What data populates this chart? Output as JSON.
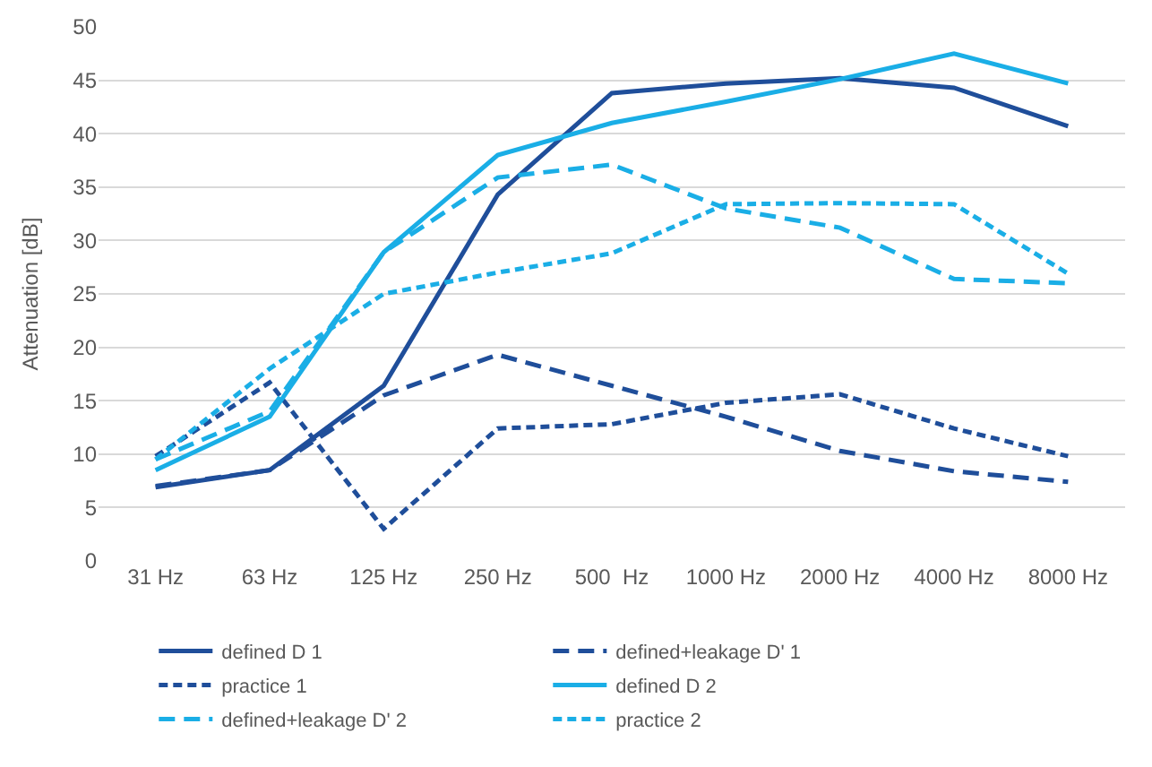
{
  "chart_data": {
    "type": "line",
    "ylabel": "Attenuation [dB]",
    "categories": [
      "31 Hz",
      "63 Hz",
      "125 Hz",
      "250 Hz",
      "500  Hz",
      "1000 Hz",
      "2000 Hz",
      "4000 Hz",
      "8000 Hz"
    ],
    "ylim": [
      0,
      50
    ],
    "yticks": [
      0,
      5,
      10,
      15,
      20,
      25,
      30,
      35,
      40,
      45,
      50
    ],
    "grid": "y",
    "legend": "bottom",
    "marker": "none",
    "series": [
      {
        "name": "defined D 1",
        "color": "#1f4e9a",
        "line_style": "solid",
        "values": [
          6.9,
          8.5,
          16.4,
          34.3,
          43.8,
          44.7,
          45.2,
          44.3,
          40.7
        ]
      },
      {
        "name": "defined+leakage D' 1",
        "color": "#1f4e9a",
        "line_style": "dashed",
        "values": [
          7.0,
          8.5,
          15.5,
          19.3,
          16.4,
          13.5,
          10.3,
          8.4,
          7.4
        ]
      },
      {
        "name": "practice 1",
        "color": "#1f4e9a",
        "line_style": "dotted",
        "values": [
          9.8,
          16.7,
          3.0,
          12.4,
          12.8,
          14.8,
          15.6,
          12.4,
          9.8
        ]
      },
      {
        "name": "defined D 2",
        "color": "#1aaee6",
        "line_style": "solid",
        "values": [
          8.5,
          13.5,
          28.9,
          38.0,
          41.0,
          43.0,
          45.1,
          47.5,
          44.7
        ]
      },
      {
        "name": "defined+leakage D' 2",
        "color": "#1aaee6",
        "line_style": "dashed",
        "values": [
          9.5,
          14.0,
          28.9,
          35.9,
          37.1,
          33.0,
          31.2,
          26.4,
          26.0
        ]
      },
      {
        "name": "practice 2",
        "color": "#1aaee6",
        "line_style": "dotted",
        "values": [
          9.5,
          18.0,
          25.0,
          27.0,
          28.8,
          33.4,
          33.5,
          33.4,
          26.9
        ]
      }
    ]
  }
}
